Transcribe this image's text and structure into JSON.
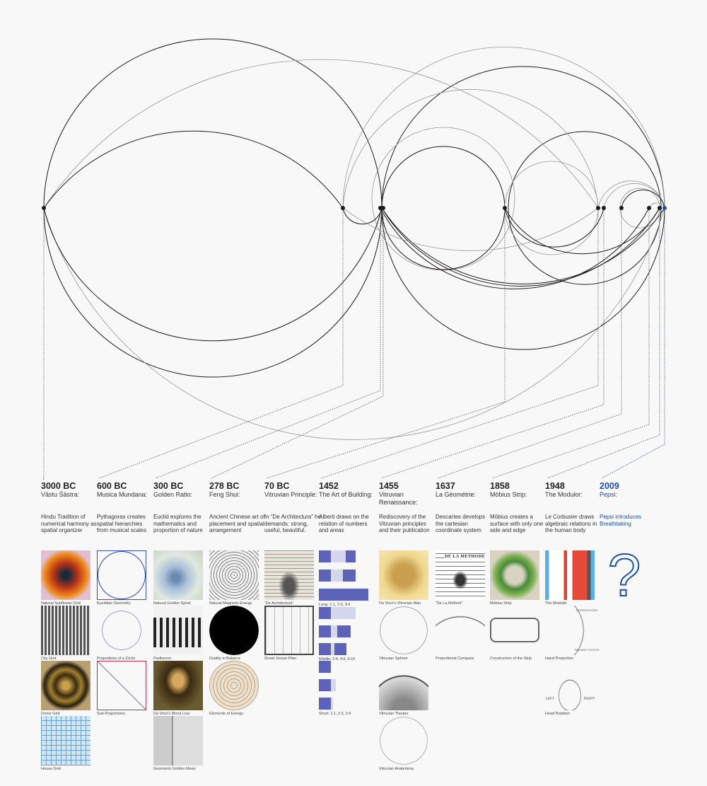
{
  "colors": {
    "ink": "#1e1a1a",
    "light_ink": "#9a9696",
    "accent": "#1a4fb0",
    "bar_dark": "#5c63b8",
    "bar_light": "#d4d6ee"
  },
  "timeline": [
    {
      "year": "3000 BC",
      "name": "Vāstu Śāstra:",
      "desc": "Hindu Tradition of numerical harmony as spatial organizer"
    },
    {
      "year": "600 BC",
      "name": "Musica Mundana:",
      "desc": "Pythagoras creates spatial hierarchies from musical scales"
    },
    {
      "year": "300 BC",
      "name": "Golden Ratio:",
      "desc": "Euclid explores the mathematics and proportion of nature"
    },
    {
      "year": "278 BC",
      "name": "Feng Shui:",
      "desc": "Ancient Chinese art of placement and spatial arrangement"
    },
    {
      "year": "70 BC",
      "name": "Vitruvian Principle:",
      "desc": "In “De Architectura” he demands: strong, useful, beautiful."
    },
    {
      "year": "1452",
      "name": "The Art of Building:",
      "desc": "Alberti draws on the relation of numbers and areas"
    },
    {
      "year": "1455",
      "name": "Vitruvian Renaissance:",
      "desc": "Rediscovery of the Vitruvian principles and their publication"
    },
    {
      "year": "1637",
      "name": "La Géométrie:",
      "desc": "Descartes develops the cartesian coordinate system"
    },
    {
      "year": "1858",
      "name": "Möbius Strip:",
      "desc": "Möbius creates a surface with only one side and edge"
    },
    {
      "year": "1948",
      "name": "The Modulor:",
      "desc": "Le Corbusier draws algebraic relations in the human body"
    },
    {
      "year": "2009",
      "name": "Pepsi:",
      "desc": "Pepsi introduces Breathtaking"
    }
  ],
  "images": [
    [
      "Natural Sunflower Grid",
      "City Grid",
      "Dome Grid",
      "House Grid"
    ],
    [
      "Euclidian Geometry",
      "Proportions of a Circle",
      "Sub-Proportions"
    ],
    [
      "Natural Golden Spiral",
      "Parthenon",
      "Da Vinci's Mona Lisa",
      "Geometric Golden Mean"
    ],
    [
      "Natural Magnetic Energy",
      "Duality in Balance",
      "Elements of Energy"
    ],
    [
      "“De Architectura”",
      "Greek House Plan"
    ],
    [
      "Long: 1:1, 2:3, 3:4",
      "Middle: 2:4, 4:9, 9:16",
      "Short: 1:1, 2:3, 3:4"
    ],
    [
      "Da Vinci's Vitruvian Man",
      "Vitruvian Sphere",
      "Vitruvian Theater",
      "Vitruvian Analemma"
    ],
    [
      "“De La Method”",
      "Proportional Compass"
    ],
    [
      "Möbius Strip",
      "Construction of the Strip"
    ],
    [
      "The Modulor",
      "Hand Proportion",
      "Head Rotation"
    ],
    [
      "?"
    ]
  ],
  "figure_text": {
    "de_la_methode": "DE LA METHODE",
    "dorsiflexion": "DORSIFLEXION",
    "palmar_flexion": "PALMAR FLEXION",
    "left": "LEFT",
    "right": "RIGHT"
  }
}
